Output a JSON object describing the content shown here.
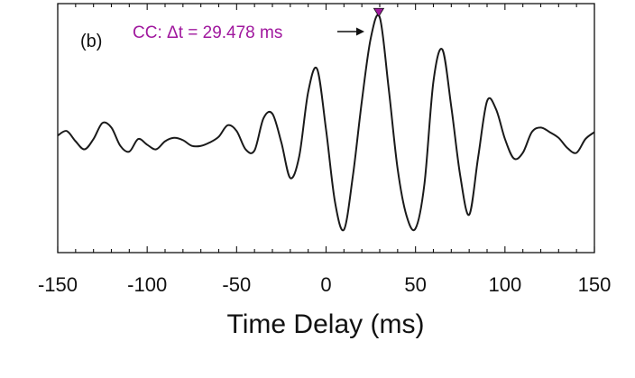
{
  "chart_data": {
    "type": "line",
    "panel_label": "(b)",
    "xlabel": "Time Delay (ms)",
    "ylabel": "",
    "xlim": [
      -150,
      150
    ],
    "ylim": [
      -1.05,
      1.12
    ],
    "x_ticks": [
      -150,
      -100,
      -50,
      0,
      50,
      100,
      150
    ],
    "x_tick_labels": [
      "-150",
      "-100",
      "-50",
      "0",
      "50",
      "100",
      "150"
    ],
    "y_tick_labels_shown": false,
    "grid": false,
    "annotation": {
      "text": "CC: Δt = 29.478 ms",
      "color": "#a0189e",
      "peak_x": 29.478,
      "peak_y": 1.0,
      "marker": "downward-triangle"
    },
    "line_color": "#1a1a1a",
    "series": [
      {
        "x": [
          -150,
          -145,
          -140,
          -135,
          -130,
          -125,
          -120,
          -115,
          -110,
          -105,
          -100,
          -95,
          -90,
          -85,
          -80,
          -75,
          -70,
          -65,
          -60,
          -55,
          -50,
          -45,
          -40,
          -35,
          -30,
          -25,
          -20,
          -15,
          -10,
          -5,
          0,
          5,
          10,
          15,
          20,
          25,
          30,
          35,
          40,
          45,
          50,
          55,
          60,
          65,
          70,
          75,
          80,
          85,
          90,
          95,
          100,
          105,
          110,
          115,
          120,
          125,
          130,
          135,
          140,
          145,
          150
        ],
        "y": [
          -0.03,
          0.01,
          -0.08,
          -0.15,
          -0.06,
          0.08,
          0.04,
          -0.12,
          -0.17,
          -0.06,
          -0.11,
          -0.15,
          -0.08,
          -0.05,
          -0.07,
          -0.12,
          -0.12,
          -0.09,
          -0.04,
          0.06,
          0.01,
          -0.15,
          -0.16,
          0.12,
          0.16,
          -0.09,
          -0.4,
          -0.21,
          0.35,
          0.55,
          0.02,
          -0.61,
          -0.85,
          -0.38,
          0.27,
          0.82,
          1.0,
          0.38,
          -0.32,
          -0.73,
          -0.84,
          -0.45,
          0.44,
          0.72,
          0.22,
          -0.38,
          -0.72,
          -0.22,
          0.27,
          0.2,
          -0.06,
          -0.23,
          -0.18,
          0.0,
          0.04,
          0.0,
          -0.05,
          -0.14,
          -0.18,
          -0.06,
          0.0
        ]
      }
    ]
  }
}
